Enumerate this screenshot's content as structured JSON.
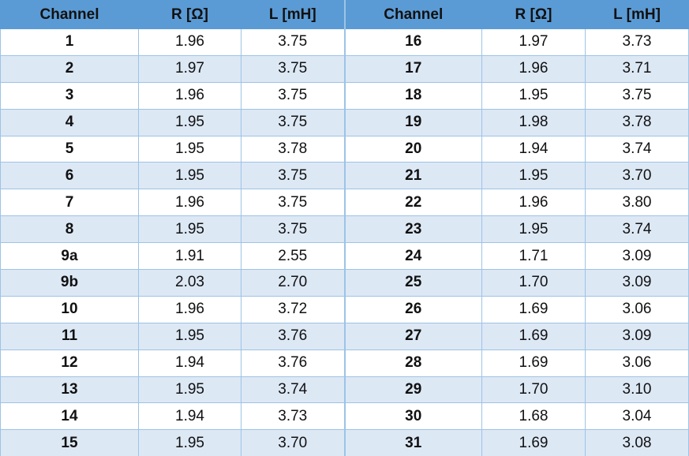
{
  "table": {
    "header": [
      "Channel",
      "R [Ω]",
      "L [mH]",
      "Channel",
      "R [Ω]",
      "L [mH]"
    ],
    "rows": [
      [
        "1",
        "1.96",
        "3.75",
        "16",
        "1.97",
        "3.73"
      ],
      [
        "2",
        "1.97",
        "3.75",
        "17",
        "1.96",
        "3.71"
      ],
      [
        "3",
        "1.96",
        "3.75",
        "18",
        "1.95",
        "3.75"
      ],
      [
        "4",
        "1.95",
        "3.75",
        "19",
        "1.98",
        "3.78"
      ],
      [
        "5",
        "1.95",
        "3.78",
        "20",
        "1.94",
        "3.74"
      ],
      [
        "6",
        "1.95",
        "3.75",
        "21",
        "1.95",
        "3.70"
      ],
      [
        "7",
        "1.96",
        "3.75",
        "22",
        "1.96",
        "3.80"
      ],
      [
        "8",
        "1.95",
        "3.75",
        "23",
        "1.95",
        "3.74"
      ],
      [
        "9a",
        "1.91",
        "2.55",
        "24",
        "1.71",
        "3.09"
      ],
      [
        "9b",
        "2.03",
        "2.70",
        "25",
        "1.70",
        "3.09"
      ],
      [
        "10",
        "1.96",
        "3.72",
        "26",
        "1.69",
        "3.06"
      ],
      [
        "11",
        "1.95",
        "3.76",
        "27",
        "1.69",
        "3.09"
      ],
      [
        "12",
        "1.94",
        "3.76",
        "28",
        "1.69",
        "3.06"
      ],
      [
        "13",
        "1.95",
        "3.74",
        "29",
        "1.70",
        "3.10"
      ],
      [
        "14",
        "1.94",
        "3.73",
        "30",
        "1.68",
        "3.04"
      ],
      [
        "15",
        "1.95",
        "3.70",
        "31",
        "1.69",
        "3.08"
      ]
    ]
  }
}
